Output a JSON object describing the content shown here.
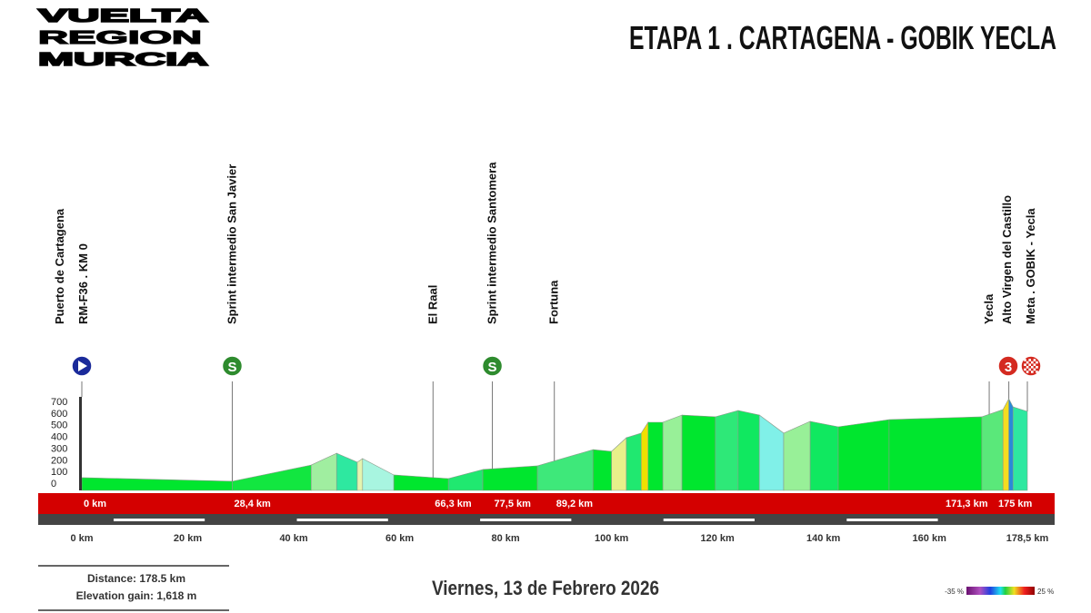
{
  "logo": {
    "lines": [
      "VUELTA",
      "REGION",
      "MURCIA"
    ]
  },
  "header": {
    "title": "ETAPA 1 . CARTAGENA - GOBIK YECLA"
  },
  "footer": {
    "distance": "Distance: 178.5 km",
    "elevation_gain": "Elevation gain: 1,618 m",
    "date": "Viernes, 13 de Febrero 2026",
    "gradient_legend": {
      "min": "-35 %",
      "max": "25 %"
    }
  },
  "chart_data": {
    "type": "area",
    "title": "",
    "xlabel": "",
    "ylabel": "",
    "xlim": [
      0,
      178.5
    ],
    "ylim": [
      0,
      700
    ],
    "grid": false,
    "y_ticks": [
      "700",
      "600",
      "500",
      "400",
      "300",
      "200",
      "100",
      "0"
    ],
    "y_tick_values": [
      700,
      600,
      500,
      400,
      300,
      200,
      100,
      0
    ],
    "x_ticks": [
      {
        "km": 0,
        "label": "0 km"
      },
      {
        "km": 20,
        "label": "20 km"
      },
      {
        "km": 40,
        "label": "40 km"
      },
      {
        "km": 60,
        "label": "60 km"
      },
      {
        "km": 80,
        "label": "80 km"
      },
      {
        "km": 100,
        "label": "100 km"
      },
      {
        "km": 120,
        "label": "120 km"
      },
      {
        "km": 140,
        "label": "140 km"
      },
      {
        "km": 160,
        "label": "160 km"
      },
      {
        "km": 178.5,
        "label": "178,5 km"
      }
    ],
    "profile": [
      {
        "km": 0,
        "ele": 47
      },
      {
        "km": 28.4,
        "ele": 16
      },
      {
        "km": 43.3,
        "ele": 155
      },
      {
        "km": 48.1,
        "ele": 256
      },
      {
        "km": 52,
        "ele": 179
      },
      {
        "km": 53,
        "ele": 210
      },
      {
        "km": 58.9,
        "ele": 70
      },
      {
        "km": 69.2,
        "ele": 39
      },
      {
        "km": 75.7,
        "ele": 117
      },
      {
        "km": 86,
        "ele": 148
      },
      {
        "km": 96.5,
        "ele": 287
      },
      {
        "km": 100,
        "ele": 272
      },
      {
        "km": 102.8,
        "ele": 389
      },
      {
        "km": 105.6,
        "ele": 428
      },
      {
        "km": 106.9,
        "ele": 521
      },
      {
        "km": 109.7,
        "ele": 521
      },
      {
        "km": 113.3,
        "ele": 583
      },
      {
        "km": 119.6,
        "ele": 568
      },
      {
        "km": 123.9,
        "ele": 622
      },
      {
        "km": 127.9,
        "ele": 583
      },
      {
        "km": 132.5,
        "ele": 428
      },
      {
        "km": 137.5,
        "ele": 529
      },
      {
        "km": 142.8,
        "ele": 482
      },
      {
        "km": 152.4,
        "ele": 544
      },
      {
        "km": 169.9,
        "ele": 568
      },
      {
        "km": 173.9,
        "ele": 630
      },
      {
        "km": 175,
        "ele": 723
      },
      {
        "km": 175.8,
        "ele": 653
      },
      {
        "km": 178.5,
        "ele": 614
      }
    ],
    "segment_colors": [
      "#00e62e",
      "#12e640",
      "#a0eea0",
      "#2ee8a0",
      "#e4f5b0",
      "#a8f5e0",
      "#00e62e",
      "#20e870",
      "#00e62e",
      "#3ee87a",
      "#00e62e",
      "#e8f08a",
      "#20e870",
      "#f0e000",
      "#00e62e",
      "#98f098",
      "#00e62e",
      "#2ee878",
      "#10e860",
      "#80f0e8",
      "#98f098",
      "#10e860",
      "#00e62e",
      "#00e62e",
      "#5ae87a",
      "#f5dc20",
      "#2a8ad8",
      "#2ee8a0"
    ],
    "points_of_interest": [
      {
        "km": 0,
        "labels": [
          "Puerto de Cartagena",
          "RM-F36 . KM 0"
        ],
        "marker": "start",
        "marker_color": "#1a2a9a",
        "bar_label": "0 km"
      },
      {
        "km": 28.4,
        "labels": [
          "Sprint intermedio San Javier"
        ],
        "marker": "sprint",
        "marker_text": "S",
        "marker_color": "#2e8b2e",
        "bar_label": "28,4 km"
      },
      {
        "km": 66.3,
        "labels": [
          "El Raal"
        ],
        "marker": "",
        "bar_label": "66,3 km"
      },
      {
        "km": 77.5,
        "labels": [
          "Sprint intermedio Santomera"
        ],
        "marker": "sprint",
        "marker_text": "S",
        "marker_color": "#2e8b2e",
        "bar_label": "77,5 km"
      },
      {
        "km": 89.2,
        "labels": [
          "Fortuna"
        ],
        "marker": "",
        "bar_label": "89,2 km"
      },
      {
        "km": 171.3,
        "labels": [
          "Yecla"
        ],
        "marker": "",
        "bar_label": "171,3 km"
      },
      {
        "km": 175,
        "labels": [
          "Alto Virgen del Castillo"
        ],
        "marker": "climb",
        "marker_text": "3",
        "marker_color": "#d42a20",
        "bar_label": "175 km"
      },
      {
        "km": 178.5,
        "labels": [
          "Meta . GOBIK - Yecla"
        ],
        "marker": "finish",
        "marker_color": "#d42a20",
        "bar_label": ""
      }
    ],
    "colors": {
      "distance_bar": "#d40000",
      "scale_bar": "#444444"
    }
  }
}
